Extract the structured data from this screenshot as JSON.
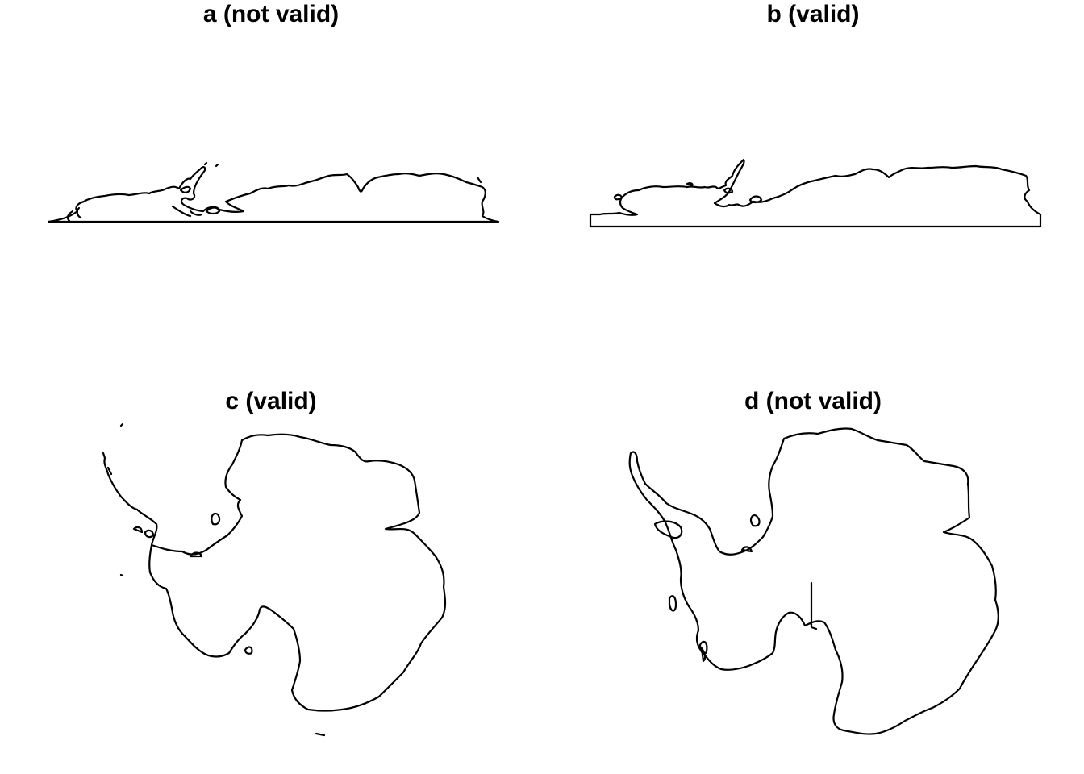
{
  "panels": [
    {
      "id": "a",
      "title": "a (not valid)"
    },
    {
      "id": "b",
      "title": "b (valid)"
    },
    {
      "id": "c",
      "title": "c (valid)"
    },
    {
      "id": "d",
      "title": "d (not valid)"
    }
  ],
  "colors": {
    "background": "#ffffff",
    "outline": "#000000"
  }
}
